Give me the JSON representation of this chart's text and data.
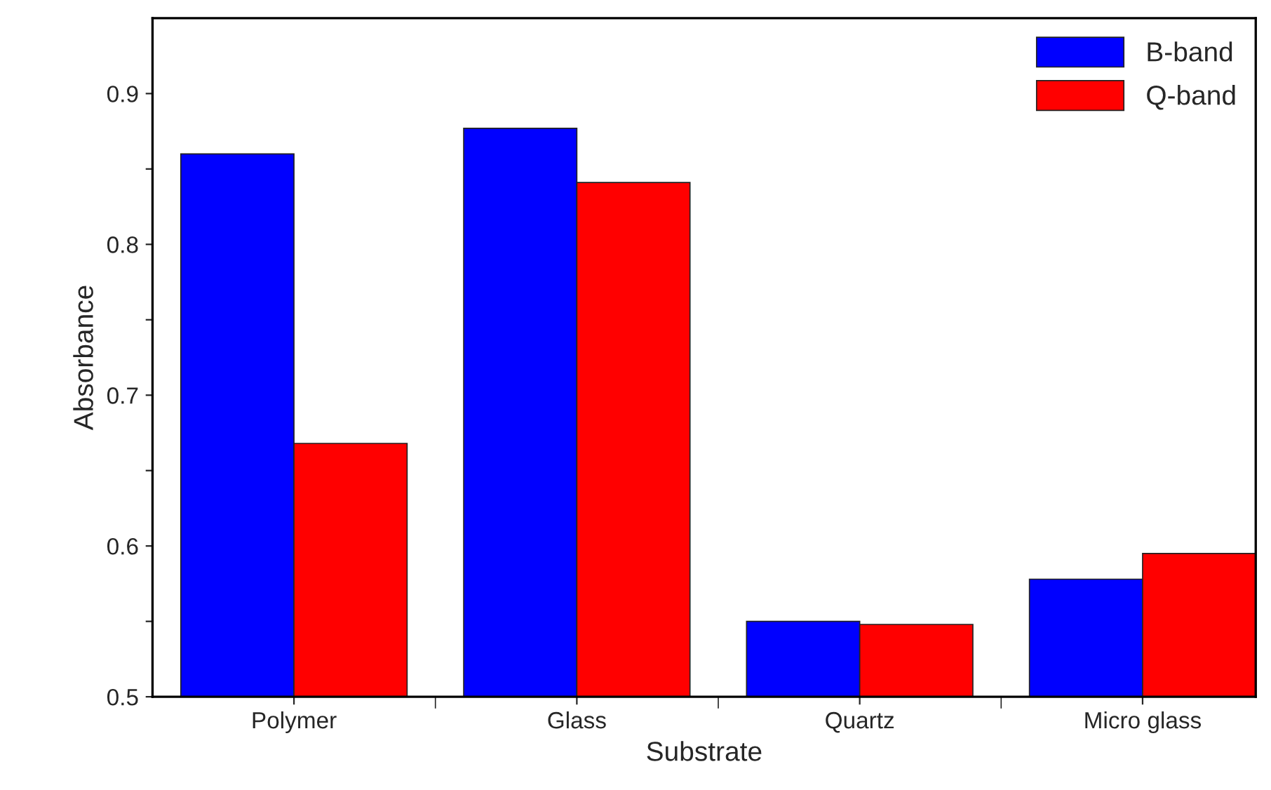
{
  "chart_data": {
    "type": "bar",
    "xlabel": "Substrate",
    "ylabel": "Absorbance",
    "categories": [
      "Polymer",
      "Glass",
      "Quartz",
      "Micro glass"
    ],
    "series": [
      {
        "name": "B-band",
        "color": "#0000ff",
        "values": [
          0.86,
          0.877,
          0.55,
          0.578
        ]
      },
      {
        "name": "Q-band",
        "color": "#ff0000",
        "values": [
          0.668,
          0.841,
          0.548,
          0.595
        ]
      }
    ],
    "ylim": [
      0.5,
      0.95
    ],
    "yticks": [
      0.5,
      {
        "value": 0.55,
        "label": null
      },
      0.6,
      {
        "value": 0.65,
        "label": null
      },
      0.7,
      {
        "value": 0.75,
        "label": null
      },
      0.8,
      {
        "value": 0.85,
        "label": null
      },
      0.9
    ],
    "grid": false,
    "legend": "top right"
  }
}
